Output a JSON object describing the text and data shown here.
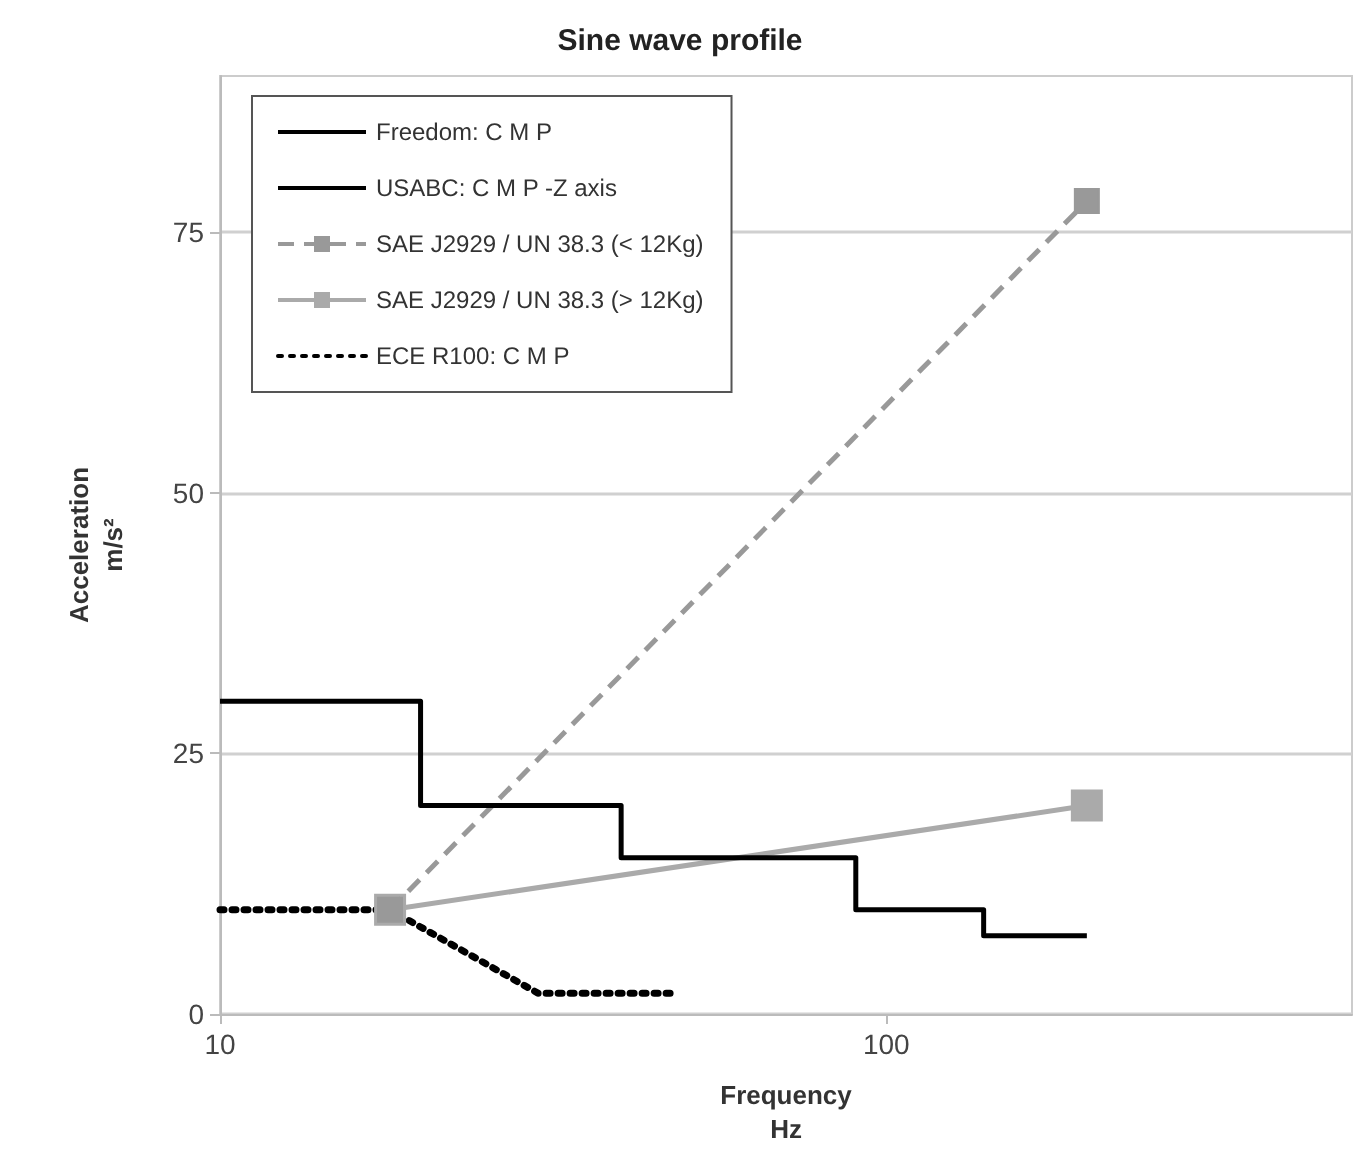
{
  "chart_data": {
    "type": "line",
    "title": "Sine wave profile",
    "xlabel": "Frequency\nHz",
    "ylabel": "Acceleration\nm/s²",
    "log": "x",
    "xlim": [
      10,
      500
    ],
    "xticks": [
      10,
      100
    ],
    "ylim": [
      0,
      90
    ],
    "yticks": [
      0,
      25,
      50,
      75
    ],
    "grid": "y",
    "legend": "top left",
    "series": [
      {
        "name": "Freedom: C M P",
        "color": "#000000",
        "line_style": "solid",
        "marker": "none"
      },
      {
        "name": "USABC: C M P -Z axis",
        "color": "#000000",
        "line_style": "solid",
        "marker": "none",
        "x": [
          10,
          20,
          20,
          40,
          40,
          90,
          90,
          140,
          140,
          200
        ],
        "values": [
          30,
          30,
          20,
          20,
          15,
          15,
          10,
          10,
          7.5,
          7.5
        ]
      },
      {
        "name": "SAE J2929 / UN 38.3 (< 12Kg)",
        "color": "#999999",
        "line_style": "dashed",
        "marker": "square",
        "x": [
          18,
          200
        ],
        "values": [
          10,
          78
        ]
      },
      {
        "name": "SAE J2929 / UN 38.3 (> 12Kg)",
        "color": "#aaaaaa",
        "line_style": "solid",
        "marker": "square",
        "x": [
          18,
          200
        ],
        "values": [
          10,
          20
        ]
      },
      {
        "name": "ECE R100: C M P",
        "color": "#000000",
        "line_style": "dotted",
        "marker": "none",
        "x": [
          10,
          18,
          30,
          48
        ],
        "values": [
          10,
          10,
          2,
          2
        ]
      }
    ]
  }
}
